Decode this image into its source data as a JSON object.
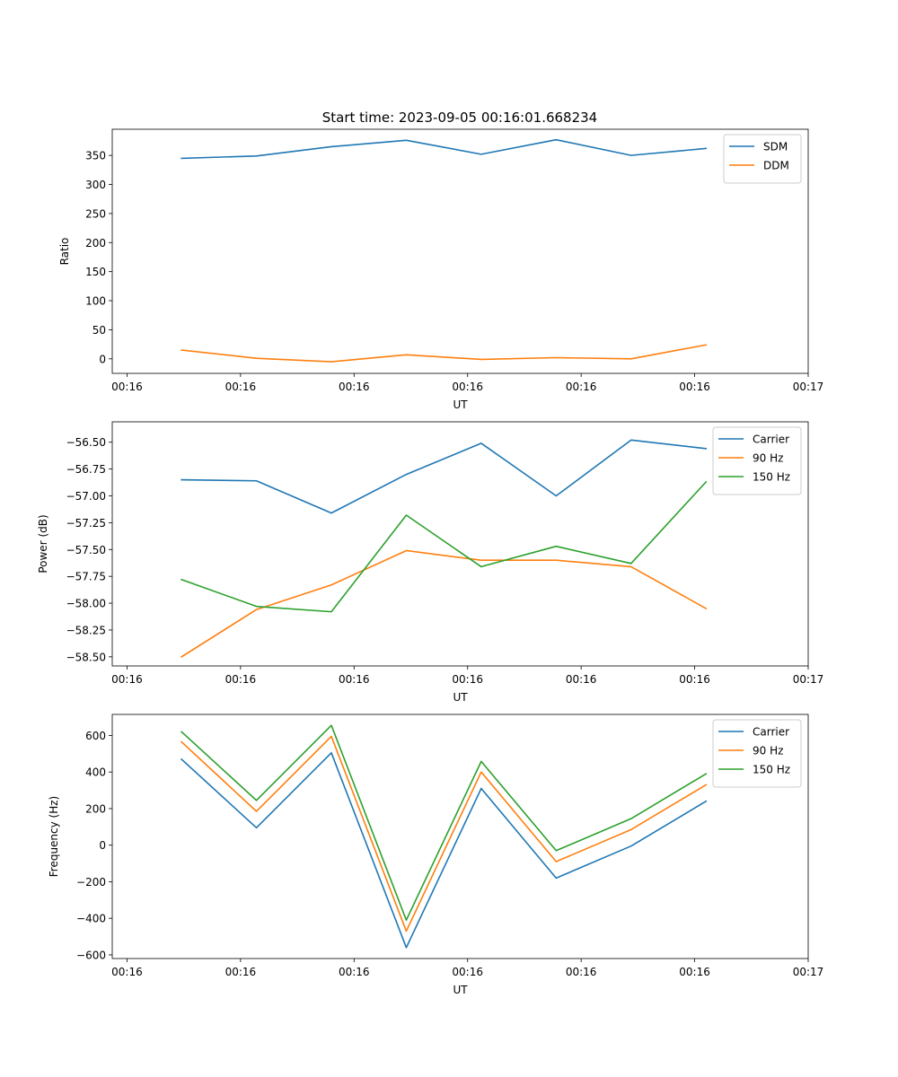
{
  "figure": {
    "title": "Start time: 2023-09-05 00:16:01.668234"
  },
  "chart_data": [
    {
      "type": "line",
      "title": "Start time: 2023-09-05 00:16:01.668234",
      "xlabel": "UT",
      "ylabel": "Ratio",
      "x_ticks": [
        0,
        1,
        2,
        3,
        4,
        5,
        6
      ],
      "x_tick_labels": [
        "00:16",
        "00:16",
        "00:16",
        "00:16",
        "00:16",
        "00:16",
        "00:17"
      ],
      "xlim": [
        -0.13,
        6.0
      ],
      "ylim": [
        -25,
        395
      ],
      "y_ticks": [
        0,
        50,
        100,
        150,
        200,
        250,
        300,
        350
      ],
      "y_tick_labels": [
        "0",
        "50",
        "100",
        "150",
        "200",
        "250",
        "300",
        "350"
      ],
      "x": [
        0.48,
        1.14,
        1.8,
        2.46,
        3.12,
        3.78,
        4.44,
        5.1
      ],
      "legend_position": "top-right",
      "series": [
        {
          "name": "SDM",
          "color": "#1f77b4",
          "values": [
            345,
            349,
            365,
            376,
            352,
            377,
            350,
            362
          ]
        },
        {
          "name": "DDM",
          "color": "#ff7f0e",
          "values": [
            15,
            1,
            -5,
            7,
            -1,
            2,
            0,
            24
          ]
        }
      ]
    },
    {
      "type": "line",
      "title": "",
      "xlabel": "UT",
      "ylabel": "Power (dB)",
      "x_ticks": [
        0,
        1,
        2,
        3,
        4,
        5,
        6
      ],
      "x_tick_labels": [
        "00:16",
        "00:16",
        "00:16",
        "00:16",
        "00:16",
        "00:16",
        "00:17"
      ],
      "xlim": [
        -0.13,
        6.0
      ],
      "ylim": [
        -58.585,
        -56.31
      ],
      "y_ticks": [
        -58.5,
        -58.25,
        -58.0,
        -57.75,
        -57.5,
        -57.25,
        -57.0,
        -56.75,
        -56.5
      ],
      "y_tick_labels": [
        "−58.50",
        "−58.25",
        "−58.00",
        "−57.75",
        "−57.50",
        "−57.25",
        "−57.00",
        "−56.75",
        "−56.50"
      ],
      "x": [
        0.48,
        1.14,
        1.8,
        2.46,
        3.12,
        3.78,
        4.44,
        5.1
      ],
      "legend_position": "top-right",
      "series": [
        {
          "name": "Carrier",
          "color": "#1f77b4",
          "values": [
            -56.85,
            -56.86,
            -57.16,
            -56.8,
            -56.51,
            -57.0,
            -56.48,
            -56.56
          ]
        },
        {
          "name": "90 Hz",
          "color": "#ff7f0e",
          "values": [
            -58.5,
            -58.06,
            -57.83,
            -57.51,
            -57.6,
            -57.6,
            -57.66,
            -58.05
          ]
        },
        {
          "name": "150 Hz",
          "color": "#2ca02c",
          "values": [
            -57.78,
            -58.03,
            -58.08,
            -57.18,
            -57.66,
            -57.47,
            -57.63,
            -56.87
          ]
        }
      ]
    },
    {
      "type": "line",
      "title": "",
      "xlabel": "UT",
      "ylabel": "Frequency (Hz)",
      "x_ticks": [
        0,
        1,
        2,
        3,
        4,
        5,
        6
      ],
      "x_tick_labels": [
        "00:16",
        "00:16",
        "00:16",
        "00:16",
        "00:16",
        "00:16",
        "00:17"
      ],
      "xlim": [
        -0.13,
        6.0
      ],
      "ylim": [
        -620,
        715
      ],
      "y_ticks": [
        -600,
        -400,
        -200,
        0,
        200,
        400,
        600
      ],
      "y_tick_labels": [
        "−600",
        "−400",
        "−200",
        "0",
        "200",
        "400",
        "600"
      ],
      "x": [
        0.48,
        1.14,
        1.8,
        2.46,
        3.12,
        3.78,
        4.44,
        5.1
      ],
      "legend_position": "top-right",
      "series": [
        {
          "name": "Carrier",
          "color": "#1f77b4",
          "values": [
            470,
            95,
            505,
            -560,
            310,
            -180,
            -5,
            240
          ]
        },
        {
          "name": "90 Hz",
          "color": "#ff7f0e",
          "values": [
            565,
            185,
            595,
            -470,
            400,
            -90,
            85,
            330
          ]
        },
        {
          "name": "150 Hz",
          "color": "#2ca02c",
          "values": [
            620,
            245,
            655,
            -410,
            458,
            -30,
            145,
            390
          ]
        }
      ]
    }
  ]
}
